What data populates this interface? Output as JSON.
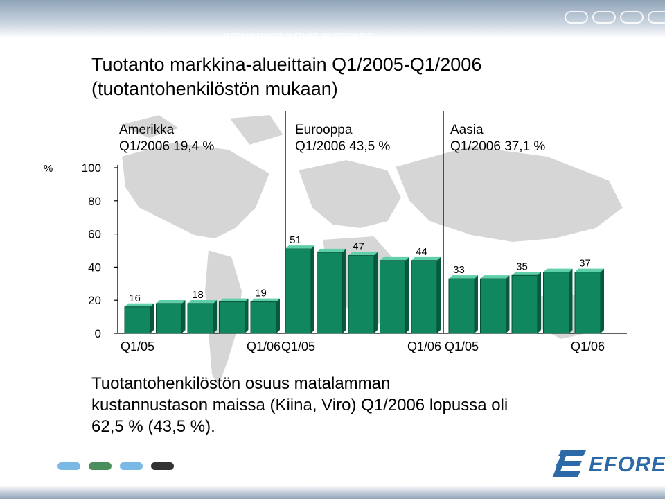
{
  "header": {
    "tagline": "POWERING YOUR SUCCESS"
  },
  "slide": {
    "title_line1": "Tuotanto markkina-alueittain Q1/2005-Q1/2006",
    "title_line2": "(tuotantohenkilöstön mukaan)",
    "caption_line1": "Tuotantohenkilöstön osuus matalamman",
    "caption_line2": "kustannustason maissa (Kiina, Viro) Q1/2006 lopussa oli",
    "caption_line3": "62,5 % (43,5 %)."
  },
  "regions": [
    {
      "name": "Amerikka",
      "share": "Q1/2006 19,4 %"
    },
    {
      "name": "Eurooppa",
      "share": "Q1/2006 43,5 %"
    },
    {
      "name": "Aasia",
      "share": "Q1/2006 37,1 %"
    }
  ],
  "logo": {
    "text": "EFORE"
  },
  "colors": {
    "bar_fill": "#10875f",
    "bar_top": "#5fd0a8",
    "bar_side": "#075a3e",
    "map": "#d6d6d6",
    "logo_blue": "#2b6aa6",
    "pills": [
      "#7ab8e6",
      "#4c8f5f",
      "#7ab8e6",
      "#333333"
    ]
  },
  "chart_data": {
    "type": "bar",
    "ylabel": "%",
    "ylim": [
      0,
      100
    ],
    "yticks": [
      "0",
      "20",
      "40",
      "60",
      "80",
      "100"
    ],
    "groups": [
      {
        "name": "Amerikka",
        "values": [
          16,
          18,
          18,
          19,
          19
        ],
        "labels": [
          "16",
          "",
          "18",
          "",
          "19"
        ],
        "x_labels": [
          "Q1/05",
          "Q1/06"
        ]
      },
      {
        "name": "Eurooppa",
        "values": [
          51,
          49,
          47,
          44,
          44
        ],
        "labels": [
          "51",
          "",
          "47",
          "",
          "44"
        ],
        "x_labels": [
          "Q1/05",
          "Q1/06"
        ]
      },
      {
        "name": "Aasia",
        "values": [
          33,
          33,
          35,
          37,
          37
        ],
        "labels": [
          "33",
          "",
          "35",
          "",
          "37"
        ],
        "x_labels": [
          "Q1/05",
          "Q1/06"
        ]
      }
    ],
    "grid": false,
    "legend": "none"
  }
}
